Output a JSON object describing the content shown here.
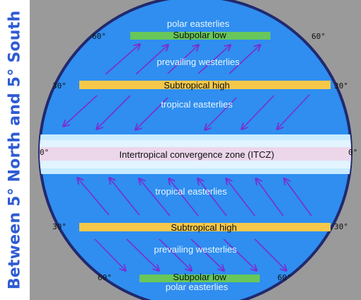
{
  "side_title": "Between 5° North and 5° South",
  "latitudes": {
    "n60": "60°",
    "n30": "30°",
    "eq": "0°",
    "s30": "30°",
    "s60": "60°"
  },
  "bands": {
    "north_subpolar_low": "Subpolar low",
    "north_subtropical_high": "Subtropical high",
    "itcz": "Intertropical convergence zone (ITCZ)",
    "south_subtropical_high": "Subtropical high",
    "south_subpolar_low": "Subpolar low"
  },
  "winds": {
    "north_polar": "polar easterlies",
    "north_westerlies": "prevailing westerlies",
    "north_tropical": "tropical easterlies",
    "south_tropical": "tropical easterlies",
    "south_westerlies": "prevailing westerlies",
    "south_polar": "polar easterlies"
  },
  "colors": {
    "ocean": "#2f8ef0",
    "globe_outline": "#22296e",
    "subpolar_band": "#67c75a",
    "subtropical_band": "#f5c84a",
    "itcz_band": "#ecd6ea",
    "arrow": "#7a2fd1",
    "grey_bg": "#9a9a9a"
  }
}
